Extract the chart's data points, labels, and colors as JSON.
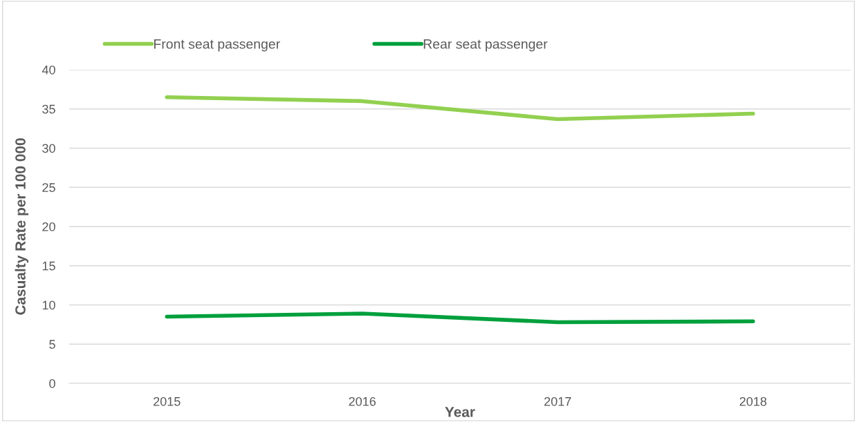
{
  "chart_data": {
    "type": "line",
    "xlabel": "Year",
    "ylabel": "Casualty Rate per 100 000",
    "categories": [
      "2015",
      "2016",
      "2017",
      "2018"
    ],
    "series": [
      {
        "name": "Front seat passenger",
        "color": "#92d050",
        "values": [
          36.5,
          36.0,
          33.7,
          34.4
        ]
      },
      {
        "name": "Rear seat passenger",
        "color": "#00a03c",
        "values": [
          8.5,
          8.9,
          7.8,
          7.9
        ]
      }
    ],
    "ylim": [
      0,
      40
    ],
    "yticks": [
      0,
      5,
      10,
      15,
      20,
      25,
      30,
      35,
      40
    ],
    "grid": "y",
    "legend": "top left",
    "marker": "none",
    "line_style": "solid"
  }
}
